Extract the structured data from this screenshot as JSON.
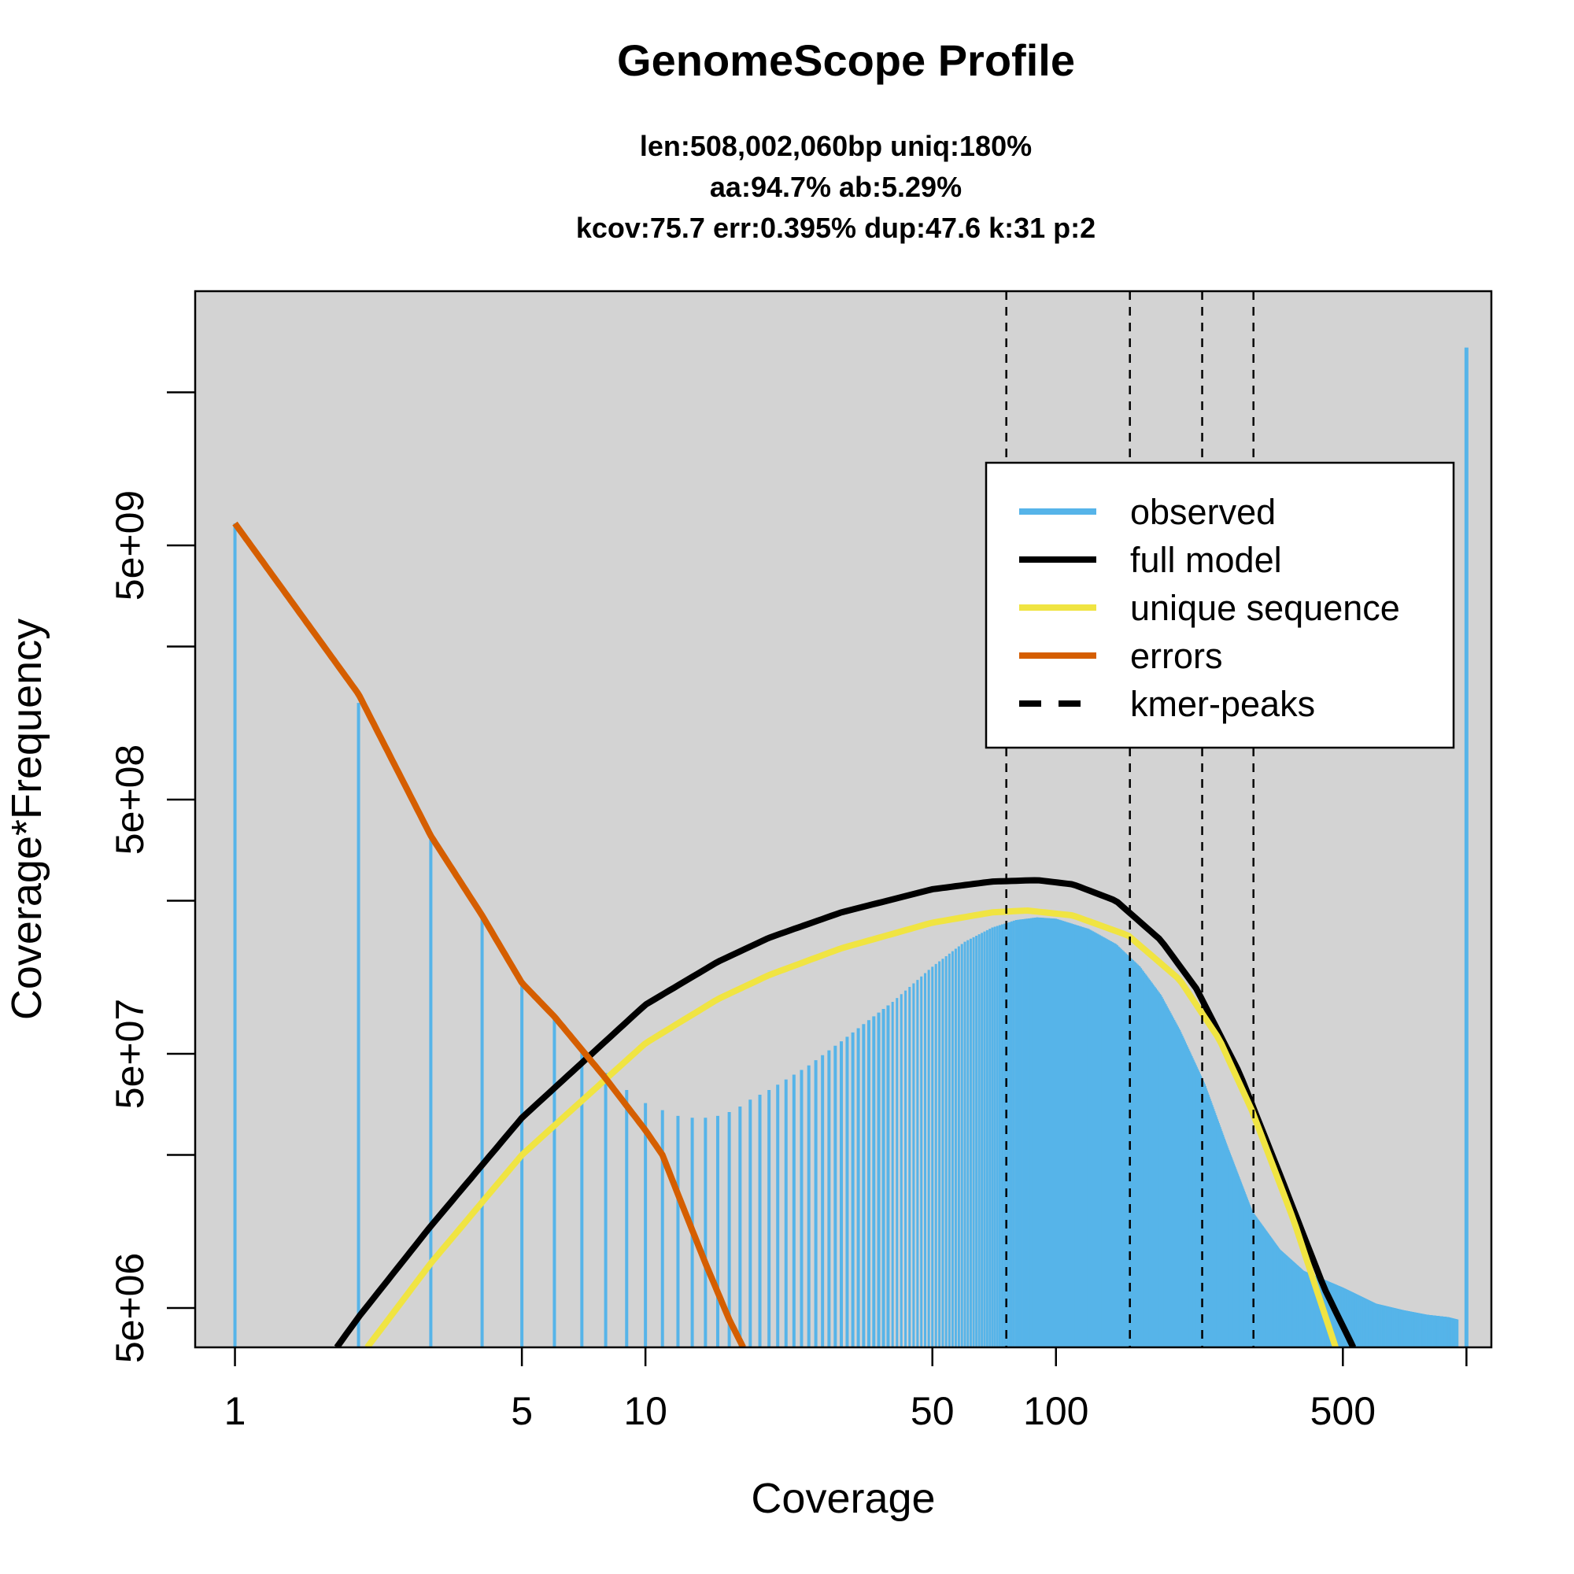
{
  "chart_data": {
    "type": "line",
    "title": "GenomeScope Profile",
    "subtitle_lines": [
      "len:508,002,060bp uniq:180%",
      "aa:94.7% ab:5.29%",
      "kcov:75.7 err:0.395%  dup:47.6  k:31 p:2"
    ],
    "xlabel": "Coverage",
    "ylabel": "Coverage*Frequency",
    "x_scale": "log",
    "y_scale": "log",
    "xlim": [
      0.8,
      1150
    ],
    "ylim": [
      3500000,
      50000000000
    ],
    "x_ticks": [
      {
        "value": 1,
        "label": "1"
      },
      {
        "value": 5,
        "label": "5"
      },
      {
        "value": 10,
        "label": "10"
      },
      {
        "value": 50,
        "label": "50"
      },
      {
        "value": 100,
        "label": "100"
      },
      {
        "value": 500,
        "label": "500"
      },
      {
        "value": 1000,
        "label": ""
      }
    ],
    "y_ticks": [
      {
        "value": 5000000,
        "label": "5e+06"
      },
      {
        "value": 20000000,
        "label": ""
      },
      {
        "value": 50000000,
        "label": "5e+07"
      },
      {
        "value": 200000000,
        "label": ""
      },
      {
        "value": 500000000,
        "label": "5e+08"
      },
      {
        "value": 2000000000,
        "label": ""
      },
      {
        "value": 5000000000,
        "label": "5e+09"
      },
      {
        "value": 20000000000,
        "label": ""
      }
    ],
    "background": "#d3d3d3",
    "legend_position": "top-right",
    "series": [
      {
        "name": "observed",
        "style": "bars",
        "color": "#56b4e9",
        "points": [
          [
            1,
            6100000000
          ],
          [
            2,
            1200000000
          ],
          [
            3,
            360000000
          ],
          [
            4,
            175000000
          ],
          [
            5,
            95000000
          ],
          [
            6,
            70000000
          ],
          [
            7,
            52000000
          ],
          [
            8,
            42000000
          ],
          [
            9,
            36000000
          ],
          [
            10,
            32000000
          ],
          [
            11,
            30000000
          ],
          [
            12,
            28500000
          ],
          [
            13,
            28000000
          ],
          [
            14,
            28000000
          ],
          [
            15,
            28500000
          ],
          [
            16,
            29500000
          ],
          [
            17,
            31000000
          ],
          [
            18,
            33000000
          ],
          [
            20,
            36000000
          ],
          [
            25,
            45000000
          ],
          [
            30,
            56000000
          ],
          [
            40,
            80000000
          ],
          [
            50,
            110000000
          ],
          [
            60,
            138000000
          ],
          [
            70,
            157000000
          ],
          [
            80,
            168000000
          ],
          [
            90,
            172000000
          ],
          [
            100,
            170000000
          ],
          [
            120,
            155000000
          ],
          [
            140,
            135000000
          ],
          [
            160,
            110000000
          ],
          [
            180,
            85000000
          ],
          [
            200,
            62000000
          ],
          [
            230,
            38000000
          ],
          [
            260,
            22000000
          ],
          [
            300,
            12000000
          ],
          [
            350,
            8500000
          ],
          [
            400,
            7000000
          ],
          [
            500,
            6000000
          ],
          [
            600,
            5200000
          ],
          [
            700,
            4900000
          ],
          [
            800,
            4700000
          ],
          [
            900,
            4600000
          ],
          [
            950,
            4500000
          ],
          [
            1000,
            30000000000
          ]
        ]
      },
      {
        "name": "full model",
        "style": "line",
        "color": "#000000",
        "points": [
          [
            1.77,
            3500000
          ],
          [
            2,
            4600000
          ],
          [
            3,
            10500000
          ],
          [
            5,
            28000000
          ],
          [
            10,
            78000000
          ],
          [
            15,
            115000000
          ],
          [
            20,
            143000000
          ],
          [
            30,
            180000000
          ],
          [
            50,
            222000000
          ],
          [
            70,
            238000000
          ],
          [
            90,
            241000000
          ],
          [
            110,
            232000000
          ],
          [
            140,
            200000000
          ],
          [
            180,
            140000000
          ],
          [
            220,
            90000000
          ],
          [
            280,
            42000000
          ],
          [
            350,
            17000000
          ],
          [
            450,
            6000000
          ],
          [
            530,
            3500000
          ]
        ]
      },
      {
        "name": "unique sequence",
        "style": "line",
        "color": "#f0e442",
        "points": [
          [
            2.1,
            3500000
          ],
          [
            3,
            7500000
          ],
          [
            5,
            20000000
          ],
          [
            10,
            55000000
          ],
          [
            15,
            82000000
          ],
          [
            20,
            102000000
          ],
          [
            30,
            130000000
          ],
          [
            50,
            164000000
          ],
          [
            70,
            180000000
          ],
          [
            85,
            183000000
          ],
          [
            110,
            175000000
          ],
          [
            150,
            146000000
          ],
          [
            200,
            98000000
          ],
          [
            250,
            57000000
          ],
          [
            300,
            30000000
          ],
          [
            380,
            11000000
          ],
          [
            480,
            3500000
          ]
        ]
      },
      {
        "name": "errors",
        "style": "line",
        "color": "#d55e00",
        "points": [
          [
            1,
            6100000000
          ],
          [
            2,
            1300000000
          ],
          [
            3,
            360000000
          ],
          [
            4,
            175000000
          ],
          [
            5,
            95000000
          ],
          [
            6,
            70000000
          ],
          [
            8,
            40000000
          ],
          [
            10,
            25000000
          ],
          [
            11,
            20000000
          ],
          [
            12,
            14000000
          ],
          [
            14,
            7500000
          ],
          [
            16,
            4500000
          ],
          [
            17.3,
            3500000
          ]
        ]
      },
      {
        "name": "kmer-peaks",
        "style": "vline-dashed",
        "color": "#000000",
        "x_values": [
          75.7,
          151.4,
          227.1,
          302.8
        ]
      }
    ]
  }
}
